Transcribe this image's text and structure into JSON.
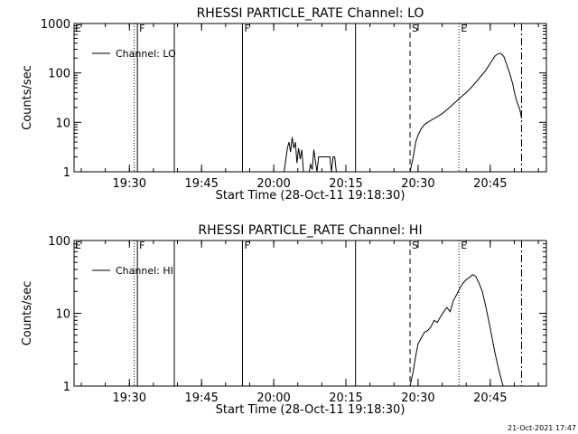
{
  "footer": {
    "timestamp": "21-Oct-2021 17:47"
  },
  "chart_data": [
    {
      "type": "line",
      "title": "RHESSI PARTICLE_RATE Channel: LO",
      "xlabel": "Start Time (28-Oct-11 19:18:30)",
      "ylabel": "Counts/sec",
      "yscale": "log",
      "xlim": [
        "19:18:30",
        "20:56:40"
      ],
      "ylim": [
        1,
        1000
      ],
      "x_ticks": [
        "19:30",
        "19:45",
        "20:00",
        "20:15",
        "20:30",
        "20:45"
      ],
      "y_ticks": [
        "1",
        "10",
        "100",
        "1000"
      ],
      "legend": {
        "placement": "top-left",
        "entries": [
          "Channel: LO"
        ]
      },
      "markers": [
        {
          "time": "19:31:00",
          "style": "dotted",
          "label": ""
        },
        {
          "time": "19:31:40",
          "style": "solid",
          "label": "F"
        },
        {
          "time": "19:39:20",
          "style": "solid",
          "label": ""
        },
        {
          "time": "19:53:30",
          "style": "solid",
          "label": "F"
        },
        {
          "time": "20:17:00",
          "style": "solid",
          "label": ""
        },
        {
          "time": "20:28:20",
          "style": "dashed",
          "label": "S"
        },
        {
          "time": "20:38:30",
          "style": "dotted",
          "label": "E"
        },
        {
          "time": "20:51:30",
          "style": "dashdot",
          "label": ""
        }
      ],
      "edge_label": "E",
      "series": [
        {
          "name": "Channel: LO",
          "segments": [
            {
              "x": [
                "20:02:10",
                "20:02:50",
                "20:03:10",
                "20:03:30",
                "20:03:50",
                "20:04:10",
                "20:04:30",
                "20:04:50",
                "20:05:10",
                "20:05:30",
                "20:05:50",
                "20:06:10"
              ],
              "y": [
                1,
                3,
                4,
                2.5,
                5,
                3,
                4,
                1.5,
                3,
                1.8,
                2.8,
                1
              ]
            },
            {
              "x": [
                "20:07:20",
                "20:07:40",
                "20:08:00",
                "20:08:20",
                "20:08:40",
                "20:09:00"
              ],
              "y": [
                1,
                1.4,
                1.1,
                2.8,
                1.6,
                1
              ]
            },
            {
              "x": [
                "20:09:00",
                "20:09:20",
                "20:11:40",
                "20:12:00"
              ],
              "y": [
                1,
                2,
                2,
                1
              ]
            },
            {
              "x": [
                "20:12:00",
                "20:12:20",
                "20:12:40",
                "20:13:00"
              ],
              "y": [
                1,
                2,
                2,
                1
              ]
            },
            {
              "x": [
                "20:28:20",
                "20:29:00",
                "20:29:30",
                "20:30:00",
                "20:30:40",
                "20:31:20",
                "20:32:00",
                "20:33:00",
                "20:34:00",
                "20:35:00",
                "20:36:00",
                "20:37:00",
                "20:38:00",
                "20:39:00",
                "20:40:00",
                "20:41:00",
                "20:42:00",
                "20:43:00",
                "20:44:00",
                "20:44:40",
                "20:45:20",
                "20:46:00",
                "20:46:30",
                "20:47:10",
                "20:47:50",
                "20:48:30",
                "20:49:10",
                "20:49:40",
                "20:50:10",
                "20:50:40",
                "20:51:10",
                "20:51:30"
              ],
              "y": [
                1,
                2,
                4,
                5.5,
                7.5,
                9,
                10,
                11.5,
                13,
                15,
                18,
                22,
                27,
                33,
                40,
                50,
                65,
                85,
                110,
                140,
                175,
                220,
                240,
                250,
                215,
                140,
                90,
                60,
                35,
                24,
                18,
                12
              ]
            }
          ]
        }
      ]
    },
    {
      "type": "line",
      "title": "RHESSI PARTICLE_RATE Channel: HI",
      "xlabel": "Start Time (28-Oct-11 19:18:30)",
      "ylabel": "Counts/sec",
      "yscale": "log",
      "xlim": [
        "19:18:30",
        "20:56:40"
      ],
      "ylim": [
        1,
        100
      ],
      "x_ticks": [
        "19:30",
        "19:45",
        "20:00",
        "20:15",
        "20:30",
        "20:45"
      ],
      "y_ticks": [
        "1",
        "10",
        "100"
      ],
      "legend": {
        "placement": "top-left",
        "entries": [
          "Channel: HI"
        ]
      },
      "markers": [
        {
          "time": "19:31:00",
          "style": "dotted",
          "label": ""
        },
        {
          "time": "19:31:40",
          "style": "solid",
          "label": "F"
        },
        {
          "time": "19:39:20",
          "style": "solid",
          "label": ""
        },
        {
          "time": "19:53:30",
          "style": "solid",
          "label": "F"
        },
        {
          "time": "20:17:00",
          "style": "solid",
          "label": ""
        },
        {
          "time": "20:28:20",
          "style": "dashed",
          "label": "S"
        },
        {
          "time": "20:38:30",
          "style": "dotted",
          "label": "E"
        },
        {
          "time": "20:51:30",
          "style": "dashdot",
          "label": ""
        }
      ],
      "edge_label": "E",
      "series": [
        {
          "name": "Channel: HI",
          "segments": [
            {
              "x": [
                "20:28:20",
                "20:29:00",
                "20:29:30",
                "20:30:00",
                "20:30:40",
                "20:31:20",
                "20:32:00",
                "20:32:40",
                "20:33:20",
                "20:34:00",
                "20:34:40",
                "20:35:20",
                "20:36:00",
                "20:36:40",
                "20:37:20",
                "20:38:00",
                "20:38:40",
                "20:39:20",
                "20:40:00",
                "20:40:40",
                "20:41:20",
                "20:42:00",
                "20:42:40",
                "20:43:20",
                "20:44:00",
                "20:44:40",
                "20:45:20",
                "20:46:00",
                "20:46:40",
                "20:47:20",
                "20:47:40"
              ],
              "y": [
                1,
                1.6,
                2.6,
                3.8,
                4.6,
                5.5,
                5.8,
                6.5,
                8,
                7.5,
                9,
                10.5,
                12,
                10.5,
                15,
                18,
                22,
                26,
                29,
                31,
                34,
                32,
                26,
                20,
                13,
                8,
                4.8,
                2.8,
                1.8,
                1.2,
                1
              ]
            }
          ]
        }
      ]
    }
  ]
}
